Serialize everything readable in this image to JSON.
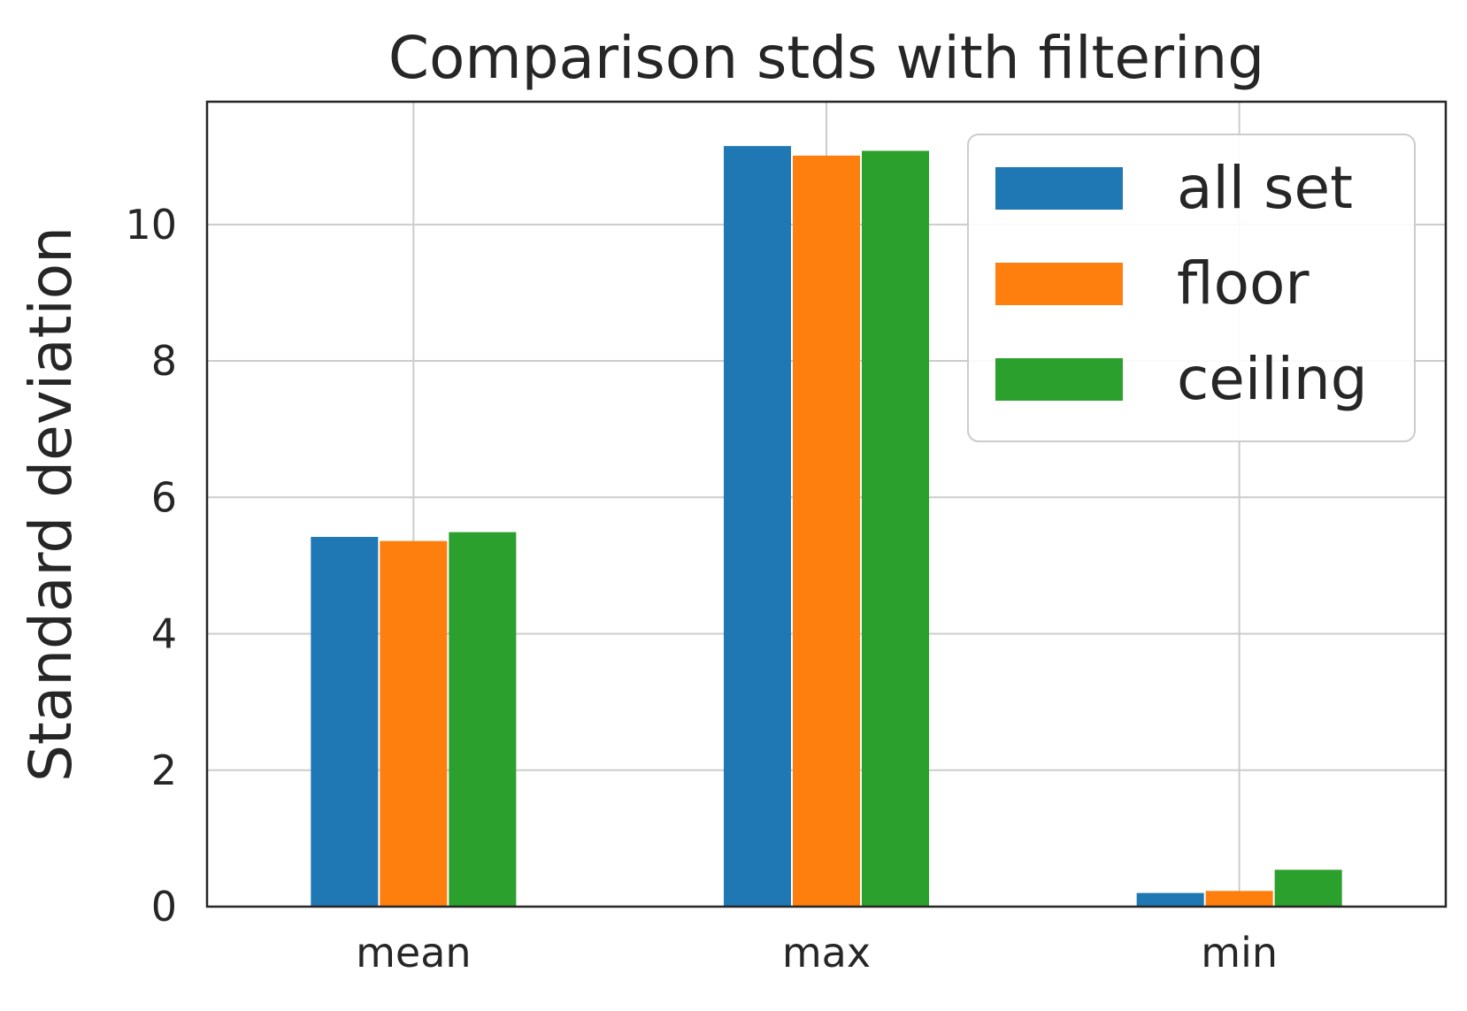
{
  "chart_data": {
    "type": "bar",
    "title": "Comparison stds with filtering",
    "xlabel": "",
    "ylabel": "Standard deviation",
    "categories": [
      "mean",
      "max",
      "min"
    ],
    "series": [
      {
        "name": "all set",
        "color": "#1f77b4",
        "values": [
          5.42,
          11.15,
          0.2
        ]
      },
      {
        "name": "floor",
        "color": "#ff7f0e",
        "values": [
          5.36,
          11.01,
          0.23
        ]
      },
      {
        "name": "ceiling",
        "color": "#2ca02c",
        "values": [
          5.49,
          11.08,
          0.54
        ]
      }
    ],
    "ylim": [
      0,
      11.8
    ],
    "yticks": [
      0,
      2,
      4,
      6,
      8,
      10
    ],
    "grid": true,
    "legend_position": "top-right"
  }
}
